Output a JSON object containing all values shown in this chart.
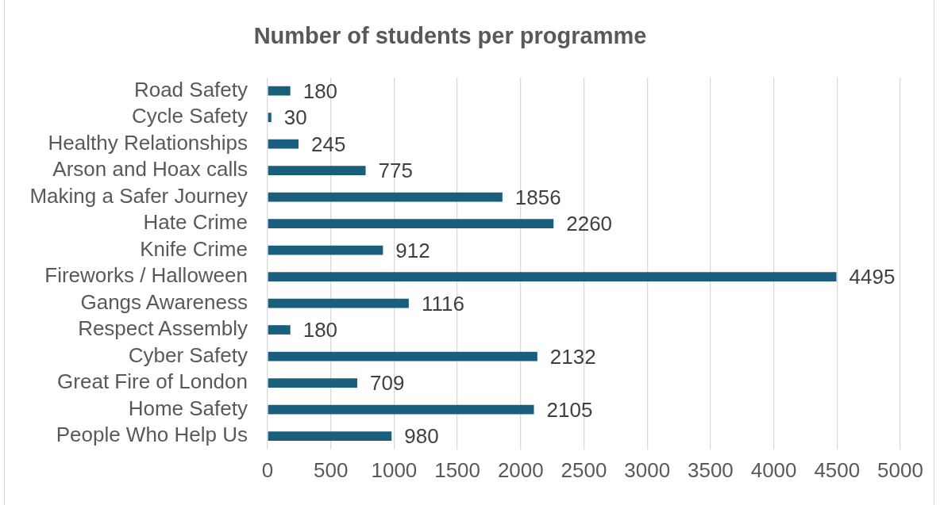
{
  "chart_data": {
    "type": "bar",
    "orientation": "horizontal",
    "title": "Number of students per programme",
    "categories": [
      "Road Safety",
      "Cycle Safety",
      "Healthy Relationships",
      "Arson and Hoax calls",
      "Making a Safer Journey",
      "Hate Crime",
      "Knife Crime",
      "Fireworks / Halloween",
      "Gangs Awareness",
      "Respect Assembly",
      "Cyber Safety",
      "Great Fire of London",
      "Home Safety",
      "People Who Help Us"
    ],
    "values": [
      180,
      30,
      245,
      775,
      1856,
      2260,
      912,
      4495,
      1116,
      180,
      2132,
      709,
      2105,
      980
    ],
    "color": "#1a5e7e",
    "xlim": [
      0,
      5000
    ],
    "xticks": [
      0,
      500,
      1000,
      1500,
      2000,
      2500,
      3000,
      3500,
      4000,
      4500,
      5000
    ],
    "grid": "x",
    "data_labels": true
  }
}
